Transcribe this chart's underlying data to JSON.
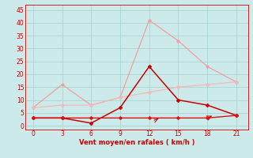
{
  "x": [
    0,
    3,
    6,
    9,
    12,
    15,
    18,
    21
  ],
  "line_gusts": [
    7,
    16,
    8,
    11,
    41,
    33,
    23,
    17
  ],
  "line_avg_wind": [
    3,
    3,
    1,
    7,
    23,
    10,
    8,
    4
  ],
  "line_gradual": [
    7,
    8,
    8,
    11,
    13,
    15,
    16,
    17
  ],
  "line_flat": [
    3,
    3,
    3,
    3,
    3,
    3,
    3,
    4
  ],
  "color_gusts": "#f0a0a0",
  "color_avg_wind": "#cc0000",
  "color_gradual": "#f5b8b8",
  "color_flat": "#dd1111",
  "bg_color": "#cceaea",
  "grid_color": "#aad4d4",
  "xlabel": "Vent moyen/en rafales ( km/h )",
  "xlabel_color": "#cc0000",
  "yticks": [
    0,
    5,
    10,
    15,
    20,
    25,
    30,
    35,
    40,
    45
  ],
  "xticks": [
    0,
    3,
    6,
    9,
    12,
    15,
    18,
    21
  ],
  "ylim": [
    -1.5,
    47
  ],
  "xlim": [
    -0.8,
    22.2
  ],
  "tick_color": "#cc0000",
  "tick_fontsize": 5.5,
  "xlabel_fontsize": 6.0
}
